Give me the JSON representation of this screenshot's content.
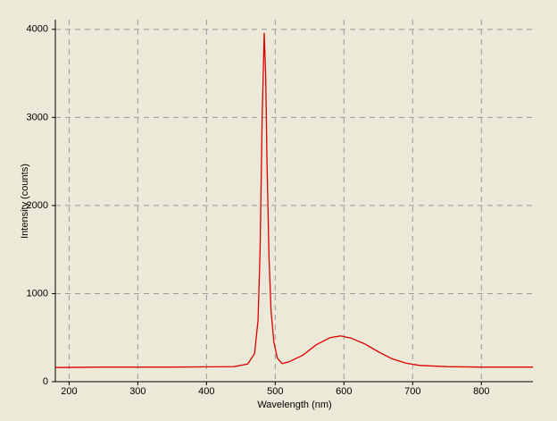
{
  "chart_data": {
    "type": "line",
    "xlabel": "Wavelength (nm)",
    "ylabel": "Intensity (counts)",
    "x": [
      180,
      250,
      350,
      440,
      460,
      470,
      475,
      478,
      481,
      484,
      486,
      488,
      491,
      494,
      498,
      503,
      510,
      520,
      540,
      560,
      580,
      595,
      610,
      630,
      650,
      670,
      690,
      710,
      750,
      800,
      875
    ],
    "values": [
      160,
      165,
      165,
      170,
      200,
      320,
      700,
      1500,
      3000,
      3960,
      3500,
      2500,
      1400,
      800,
      450,
      270,
      205,
      225,
      300,
      420,
      500,
      520,
      495,
      430,
      340,
      260,
      210,
      185,
      170,
      165,
      165
    ],
    "color": "#dd0000",
    "xlim": [
      180,
      875
    ],
    "ylim": [
      0,
      4110
    ],
    "xticks": [
      200,
      300,
      400,
      500,
      600,
      700,
      800
    ],
    "yticks": [
      0,
      1000,
      2000,
      3000,
      4000
    ],
    "grid": true
  }
}
